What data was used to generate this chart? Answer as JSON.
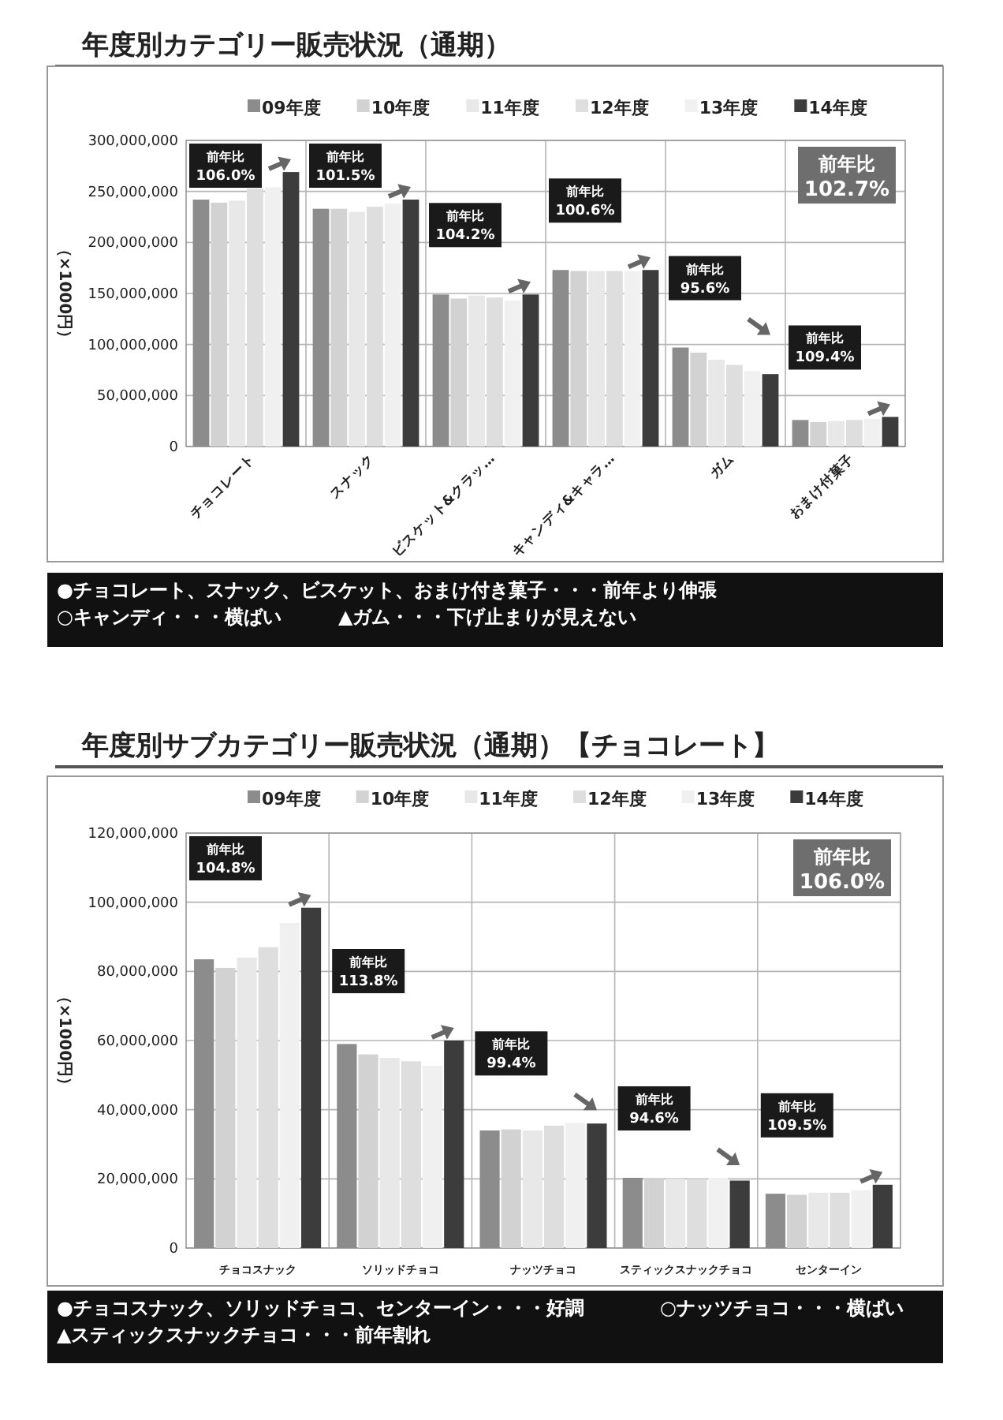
{
  "chart_data": [
    {
      "type": "bar",
      "title": "年度別カテゴリー販売状況（通期）",
      "ylabel": "（×1000円）",
      "categories": [
        "チョコレート",
        "スナック",
        "ビスケット&クラッ…",
        "キャンディ&キャラ…",
        "ガム",
        "おまけ付菓子"
      ],
      "series": [
        {
          "name": "09年度",
          "color": "#8c8c8c",
          "values": [
            242000000,
            233000000,
            149000000,
            173000000,
            97000000,
            26000000
          ]
        },
        {
          "name": "10年度",
          "color": "#d2d2d2",
          "values": [
            239000000,
            233000000,
            145000000,
            172000000,
            92000000,
            24000000
          ]
        },
        {
          "name": "11年度",
          "color": "#e8e8e8",
          "values": [
            241000000,
            230000000,
            148000000,
            172000000,
            85000000,
            25000000
          ]
        },
        {
          "name": "12年度",
          "color": "#dedede",
          "values": [
            253000000,
            235000000,
            146000000,
            172000000,
            80000000,
            26000000
          ]
        },
        {
          "name": "13年度",
          "color": "#f0f0f0",
          "values": [
            254000000,
            238000000,
            143000000,
            172000000,
            74000000,
            27000000
          ]
        },
        {
          "name": "14年度",
          "color": "#3c3c3c",
          "values": [
            269000000,
            242000000,
            149000000,
            173000000,
            71000000,
            29000000
          ]
        }
      ],
      "ylim": [
        0,
        300000000
      ],
      "yticks": [
        {
          "value": 0,
          "label": "0"
        },
        {
          "value": 50000000,
          "label": "50,000,000"
        },
        {
          "value": 100000000,
          "label": "100,000,000"
        },
        {
          "value": 150000000,
          "label": "150,000,000"
        },
        {
          "value": 200000000,
          "label": "200,000,000"
        },
        {
          "value": 250000000,
          "label": "250,000,000"
        },
        {
          "value": 300000000,
          "label": "300,000,000"
        }
      ],
      "grid": true,
      "legend": "top",
      "annotations": [
        "前年比\n102.7%",
        "●チョコレート、スナック、ビスケット、おまけ付き菓子・・・前年より伸張",
        "○キャンディ・・・横ばい　　　▲ガム・・・下げ止まりが見えない",
        "前年比\n106.0%",
        "前年比\n101.5%",
        "前年比\n104.2%",
        "前年比\n100.6%",
        "前年比\n95.6%",
        "前年比\n109.4%"
      ]
    },
    {
      "type": "bar",
      "title": "年度別サブカテゴリー販売状況（通期）【チョコレート】",
      "ylabel": "（×1000円）",
      "categories": [
        "チョコスナック",
        "ソリッドチョコ",
        "ナッツチョコ",
        "スティックスナックチョコ",
        "センターイン"
      ],
      "series": [
        {
          "name": "09年度",
          "color": "#8c8c8c",
          "values": [
            83500000,
            59000000,
            34000000,
            20300000,
            15700000
          ]
        },
        {
          "name": "10年度",
          "color": "#d2d2d2",
          "values": [
            81000000,
            56000000,
            34300000,
            20000000,
            15400000
          ]
        },
        {
          "name": "11年度",
          "color": "#e8e8e8",
          "values": [
            84000000,
            55000000,
            34000000,
            20000000,
            16000000
          ]
        },
        {
          "name": "12年度",
          "color": "#dedede",
          "values": [
            87000000,
            54000000,
            35400000,
            20000000,
            16000000
          ]
        },
        {
          "name": "13年度",
          "color": "#f0f0f0",
          "values": [
            94000000,
            52700000,
            36200000,
            20300000,
            16700000
          ]
        },
        {
          "name": "14年度",
          "color": "#3c3c3c",
          "values": [
            98400000,
            60000000,
            36000000,
            19500000,
            18300000
          ]
        }
      ],
      "ylim": [
        0,
        120000000
      ],
      "yticks": [
        {
          "value": 0,
          "label": "0"
        },
        {
          "value": 20000000,
          "label": "20,000,000"
        },
        {
          "value": 40000000,
          "label": "40,000,000"
        },
        {
          "value": 60000000,
          "label": "60,000,000"
        },
        {
          "value": 80000000,
          "label": "80,000,000"
        },
        {
          "value": 100000000,
          "label": "100,000,000"
        },
        {
          "value": 120000000,
          "label": "120,000,000"
        }
      ],
      "grid": true,
      "legend": "top",
      "annotations": [
        "前年比\n106.0%",
        "●チョコスナック、ソリッドチョコ、センターイン・・・好調　　　　○ナッツチョコ・・・横ばい",
        "▲スティックスナックチョコ・・・前年割れ",
        "前年比\n104.8%",
        "前年比\n113.8%",
        "前年比\n99.4%",
        "前年比\n94.6%",
        "前年比\n109.5%"
      ]
    }
  ]
}
